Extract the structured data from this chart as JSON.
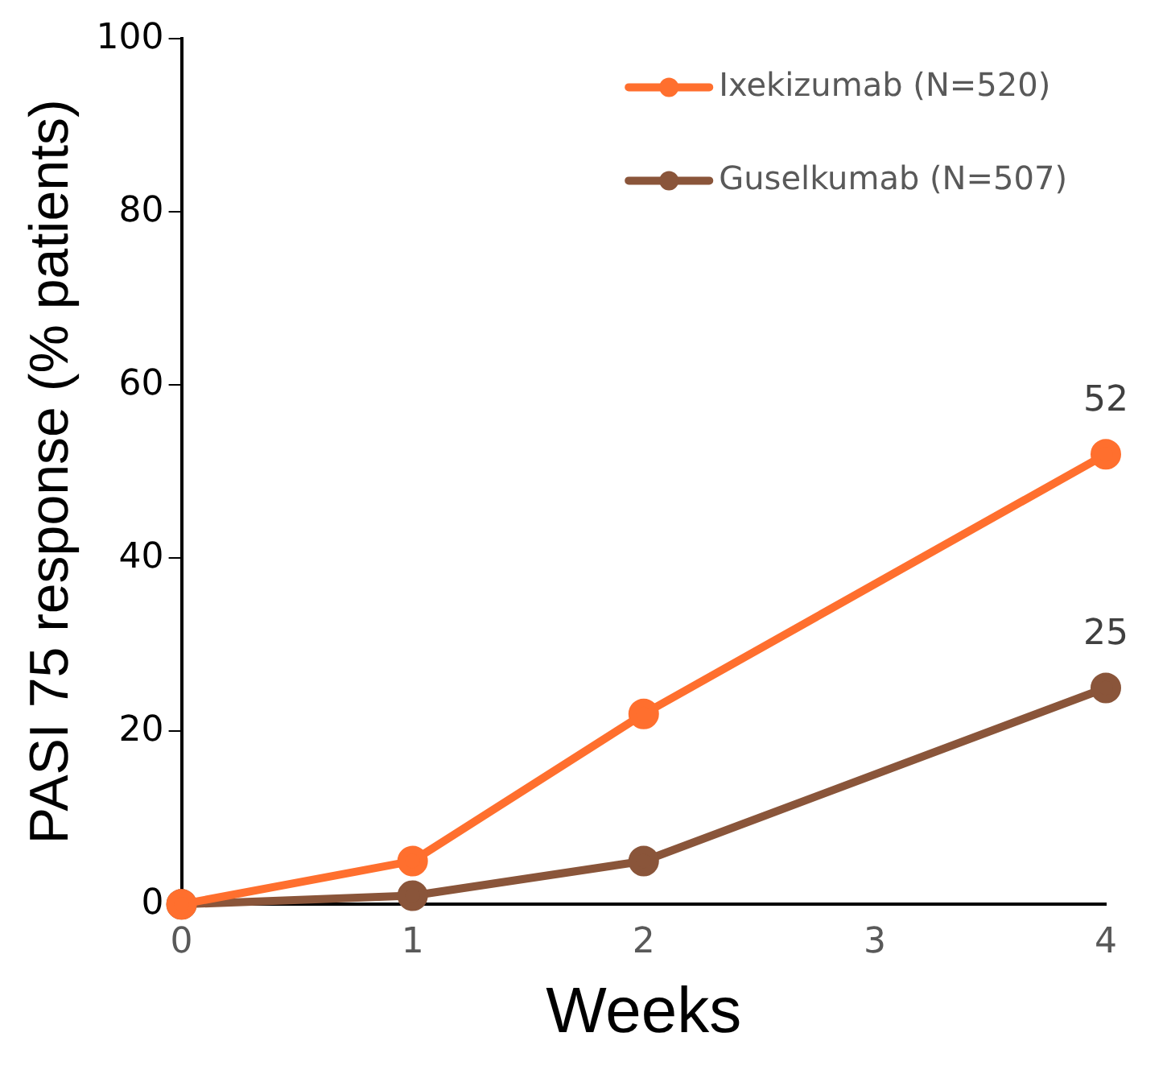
{
  "chart_data": {
    "type": "line",
    "xlabel": "Weeks",
    "ylabel": "PASI 75 response (% patients)",
    "x": [
      0,
      1,
      2,
      4
    ],
    "xlim": [
      0,
      4
    ],
    "xticks": [
      0,
      1,
      2,
      3,
      4
    ],
    "ylim": [
      0,
      100
    ],
    "yticks": [
      0,
      20,
      40,
      60,
      80,
      100
    ],
    "grid": false,
    "legend": "top right",
    "marker": "circle",
    "line_style": "solid",
    "series": [
      {
        "name": "Ixekizumab (N=520)",
        "color": "#ff6f2e",
        "values": [
          0,
          5,
          22,
          52
        ],
        "value_labels": [
          null,
          null,
          null,
          "52"
        ]
      },
      {
        "name": "Guselkumab (N=507)",
        "color": "#8a553a",
        "values": [
          0,
          1,
          5,
          25
        ],
        "value_labels": [
          null,
          null,
          null,
          "25"
        ]
      }
    ]
  }
}
